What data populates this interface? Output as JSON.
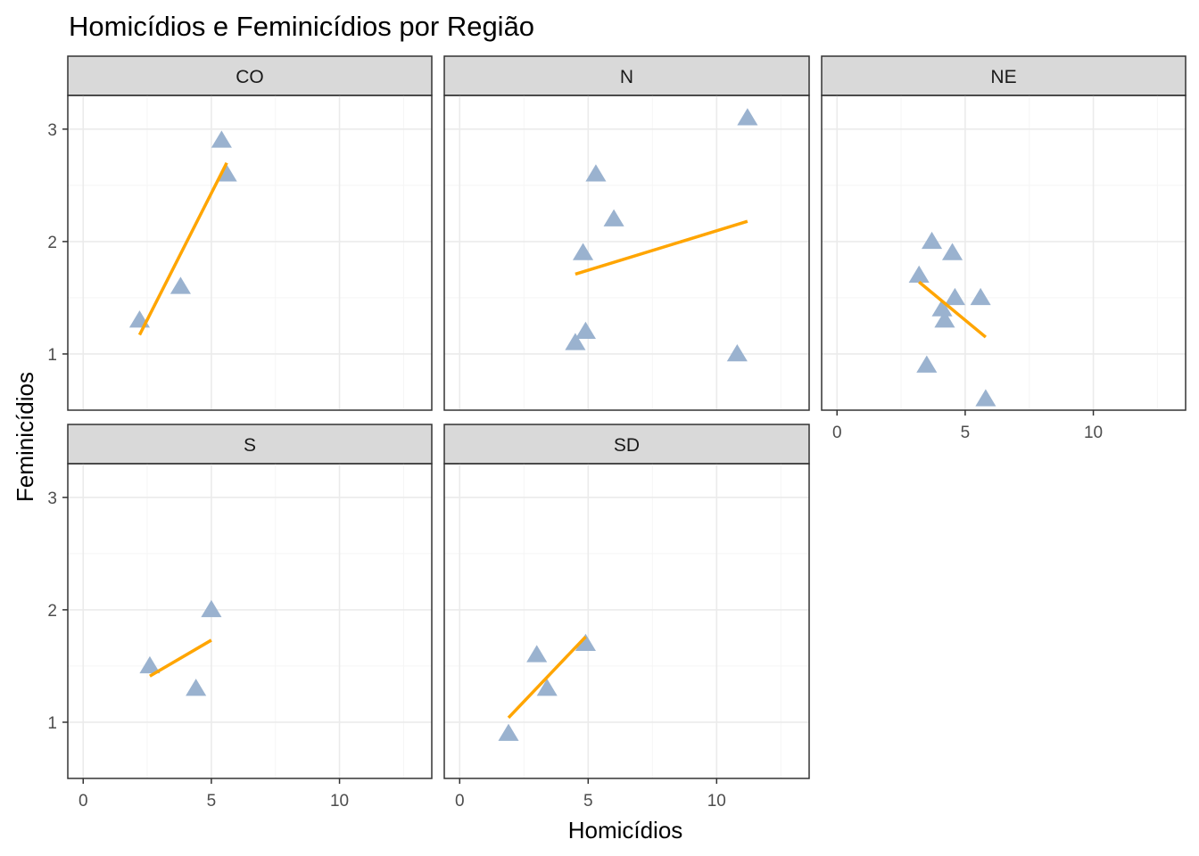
{
  "chart_data": {
    "type": "scatter",
    "title": "Homicídios e Feminicídios por Região",
    "xlabel": "Homicídios",
    "ylabel": "Feminicídios",
    "xlim": [
      -0.6,
      13.6
    ],
    "ylim": [
      0.5,
      3.3
    ],
    "x_ticks": [
      0,
      5,
      10
    ],
    "y_ticks": [
      1,
      2,
      3
    ],
    "grid": true,
    "point_shape": "triangle",
    "colors": {
      "points": "#9ab2cf",
      "trend_line": "#ffa500",
      "strip_background": "#d9d9d9",
      "panel_border": "#333333",
      "grid_major": "#ebebeb",
      "grid_minor": "#f5f5f5"
    },
    "panels": [
      {
        "name": "CO",
        "points": [
          [
            2.2,
            1.3
          ],
          [
            3.8,
            1.6
          ],
          [
            5.4,
            2.9
          ],
          [
            5.6,
            2.6
          ]
        ],
        "trend": [
          [
            2.2,
            1.17
          ],
          [
            5.6,
            2.7
          ]
        ]
      },
      {
        "name": "N",
        "points": [
          [
            4.5,
            1.1
          ],
          [
            4.9,
            1.2
          ],
          [
            4.8,
            1.9
          ],
          [
            5.3,
            2.6
          ],
          [
            6.0,
            2.2
          ],
          [
            10.8,
            1.0
          ],
          [
            11.2,
            3.1
          ]
        ],
        "trend": [
          [
            4.5,
            1.71
          ],
          [
            11.2,
            2.18
          ]
        ]
      },
      {
        "name": "NE",
        "points": [
          [
            3.2,
            1.7
          ],
          [
            3.7,
            2.0
          ],
          [
            4.5,
            1.9
          ],
          [
            4.1,
            1.4
          ],
          [
            4.2,
            1.3
          ],
          [
            4.6,
            1.5
          ],
          [
            5.6,
            1.5
          ],
          [
            3.5,
            0.9
          ],
          [
            5.8,
            0.6
          ]
        ],
        "trend": [
          [
            3.2,
            1.64
          ],
          [
            5.8,
            1.15
          ]
        ]
      },
      {
        "name": "S",
        "points": [
          [
            2.6,
            1.5
          ],
          [
            5.0,
            2.0
          ],
          [
            4.4,
            1.3
          ]
        ],
        "trend": [
          [
            2.6,
            1.41
          ],
          [
            5.0,
            1.73
          ]
        ]
      },
      {
        "name": "SD",
        "points": [
          [
            1.9,
            0.9
          ],
          [
            3.0,
            1.6
          ],
          [
            3.4,
            1.3
          ],
          [
            4.9,
            1.7
          ]
        ],
        "trend": [
          [
            1.9,
            1.04
          ],
          [
            4.9,
            1.76
          ]
        ]
      }
    ]
  }
}
